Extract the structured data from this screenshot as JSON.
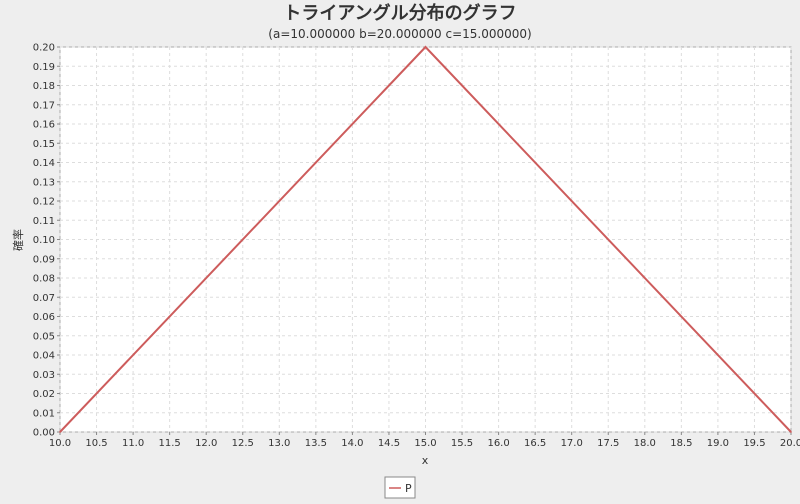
{
  "chart_data": {
    "type": "line",
    "title": "トライアングル分布のグラフ",
    "subtitle": "(a=10.000000 b=20.000000 c=15.000000)",
    "xlabel": "x",
    "ylabel": "確率",
    "xlim": [
      10.0,
      20.0
    ],
    "ylim": [
      0.0,
      0.2
    ],
    "x_ticks": [
      "10.0",
      "10.5",
      "11.0",
      "11.5",
      "12.0",
      "12.5",
      "13.0",
      "13.5",
      "14.0",
      "14.5",
      "15.0",
      "15.5",
      "16.0",
      "16.5",
      "17.0",
      "17.5",
      "18.0",
      "18.5",
      "19.0",
      "19.5",
      "20.0"
    ],
    "y_ticks": [
      "0.00",
      "0.01",
      "0.02",
      "0.03",
      "0.04",
      "0.05",
      "0.06",
      "0.07",
      "0.08",
      "0.09",
      "0.10",
      "0.11",
      "0.12",
      "0.13",
      "0.14",
      "0.15",
      "0.16",
      "0.17",
      "0.18",
      "0.19",
      "0.20"
    ],
    "grid": true,
    "legend_position": "bottom",
    "series": [
      {
        "name": "P",
        "color": "#cd5c5c",
        "x": [
          10.0,
          15.0,
          20.0
        ],
        "y": [
          0.0,
          0.2,
          0.0
        ]
      }
    ]
  }
}
